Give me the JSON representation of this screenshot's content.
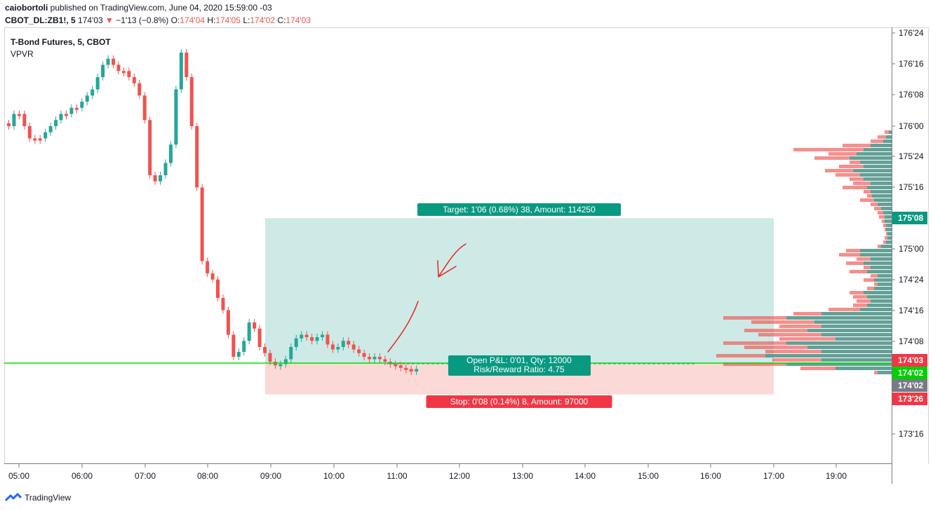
{
  "header": {
    "author": "caiobortoli",
    "published_text": " published on TradingView.com, June 04, 2020 15:59:00 -03",
    "symbol": "CBOT_DL:ZB1!, 5",
    "last": "174'03",
    "change_arrow": "▼",
    "change": "−1'13 (−0.8%)",
    "o_label": "O:",
    "o_value": "174'04",
    "h_label": "H:",
    "h_value": "174'05",
    "l_label": "L:",
    "l_value": "174'02",
    "c_label": "C:",
    "c_value": "174'03"
  },
  "legend": {
    "title": "T-Bond Futures, 5, CBOT",
    "indicator": "VPVR"
  },
  "footer": {
    "brand": "TradingView"
  },
  "colors": {
    "up": "#26a69a",
    "down": "#ef5350",
    "target_zone": "#cdeae6",
    "stop_zone": "#fbd9d7",
    "green_line": "#00e000",
    "annotation": "#ef2020"
  },
  "chart_data": {
    "type": "candlestick",
    "x_ticks": [
      "05:00",
      "06:00",
      "07:00",
      "08:00",
      "09:00",
      "10:00",
      "11:00",
      "12:00",
      "13:00",
      "14:00",
      "15:00",
      "16:00",
      "17:00",
      "19:00"
    ],
    "y_ticks": [
      "176'24",
      "176'16",
      "176'08",
      "176'00",
      "175'24",
      "175'16",
      "175'00",
      "174'24",
      "174'16",
      "174'08",
      "173'16"
    ],
    "price_badges": [
      {
        "label": "175'08",
        "color": "#089981"
      },
      {
        "label": "174'03",
        "color": "#f23645"
      },
      {
        "label": "174'02",
        "color": "#00d000"
      },
      {
        "label": "174'02",
        "color": "#787b86"
      },
      {
        "label": "173'26",
        "color": "#f23645"
      }
    ],
    "position": {
      "target_label": "Target: 1'06 (0.68%) 38, Amount: 114250",
      "pnl_label": "Open P&L: 0'01, Qty: 12000",
      "rr_label": "Risk/Reward Ratio: 4.75",
      "stop_label": "Stop: 0'08 (0.14%) 8, Amount: 97000",
      "entry": "174'02.5",
      "target": "175'08",
      "stop": "173'26",
      "start": "09:00",
      "end": "17:00"
    },
    "series_units": "price in 32nds above 173'00 (decimal 173 + n/32)",
    "candles": [
      [
        0,
        2.0
      ],
      [
        1,
        2.1
      ],
      [
        2,
        2.1
      ],
      [
        3,
        2.0
      ],
      [
        4,
        1.9
      ],
      [
        5,
        1.9
      ],
      [
        6,
        1.9
      ],
      [
        7,
        1.95
      ],
      [
        8,
        2.0
      ],
      [
        9,
        2.05
      ],
      [
        10,
        2.1
      ],
      [
        11,
        2.1
      ],
      [
        12,
        2.15
      ],
      [
        13,
        2.15
      ],
      [
        14,
        2.2
      ],
      [
        15,
        2.25
      ],
      [
        16,
        2.3
      ],
      [
        17,
        2.4
      ],
      [
        18,
        2.5
      ],
      [
        19,
        2.55
      ],
      [
        20,
        2.5
      ],
      [
        21,
        2.45
      ],
      [
        22,
        2.45
      ],
      [
        23,
        2.4
      ],
      [
        24,
        2.35
      ],
      [
        25,
        2.25
      ],
      [
        26,
        2.05
      ],
      [
        27,
        1.6
      ],
      [
        28,
        1.55
      ],
      [
        29,
        1.6
      ],
      [
        30,
        1.7
      ],
      [
        31,
        1.85
      ],
      [
        32,
        2.3
      ],
      [
        33,
        2.6
      ],
      [
        34,
        2.4
      ],
      [
        35,
        2.0
      ],
      [
        36,
        1.5
      ],
      [
        37,
        0.9
      ],
      [
        38,
        0.8
      ],
      [
        39,
        0.75
      ],
      [
        40,
        0.6
      ],
      [
        41,
        0.5
      ],
      [
        42,
        0.3
      ],
      [
        43,
        0.12
      ],
      [
        44,
        0.16
      ],
      [
        45,
        0.25
      ],
      [
        46,
        0.4
      ],
      [
        47,
        0.35
      ],
      [
        48,
        0.2
      ],
      [
        49,
        0.15
      ],
      [
        50,
        0.08
      ],
      [
        51,
        0.05
      ],
      [
        52,
        0.06
      ],
      [
        53,
        0.1
      ],
      [
        54,
        0.2
      ],
      [
        55,
        0.27
      ],
      [
        56,
        0.3
      ],
      [
        57,
        0.28
      ],
      [
        58,
        0.25
      ],
      [
        59,
        0.28
      ],
      [
        60,
        0.3
      ],
      [
        61,
        0.22
      ],
      [
        62,
        0.18
      ],
      [
        63,
        0.2
      ],
      [
        64,
        0.25
      ],
      [
        65,
        0.22
      ],
      [
        66,
        0.18
      ],
      [
        67,
        0.15
      ],
      [
        68,
        0.12
      ],
      [
        69,
        0.1
      ],
      [
        70,
        0.12
      ],
      [
        71,
        0.1
      ],
      [
        72,
        0.08
      ],
      [
        73,
        0.06
      ],
      [
        74,
        0.05
      ],
      [
        75,
        0.03
      ],
      [
        76,
        0.02
      ],
      [
        77,
        0.0
      ],
      [
        78,
        0.02
      ]
    ]
  }
}
